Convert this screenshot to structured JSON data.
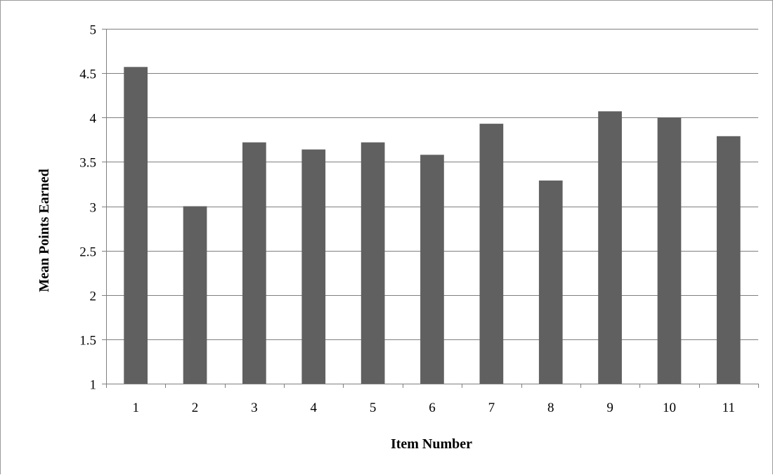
{
  "chart_data": {
    "type": "bar",
    "title": "",
    "xlabel": "Item Number",
    "ylabel": "Mean Points Earned",
    "categories": [
      "1",
      "2",
      "3",
      "4",
      "5",
      "6",
      "7",
      "8",
      "9",
      "10",
      "11"
    ],
    "values": [
      4.57,
      3.0,
      3.72,
      3.64,
      3.72,
      3.58,
      3.93,
      3.29,
      4.07,
      4.0,
      3.79
    ],
    "ylim": [
      1,
      5
    ],
    "yticks": [
      "1",
      "1.5",
      "2",
      "2.5",
      "3",
      "3.5",
      "4",
      "4.5",
      "5"
    ],
    "grid": true,
    "legend": "none",
    "bar_color": "#606060",
    "grid_color": "#7f7f7f"
  }
}
